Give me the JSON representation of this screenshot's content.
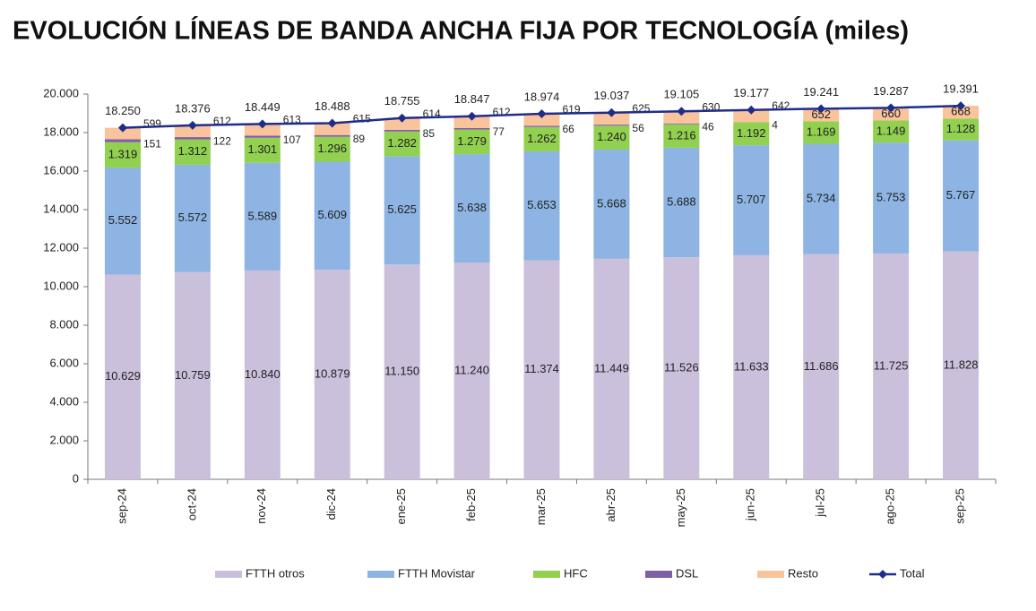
{
  "chart_data": {
    "type": "bar",
    "stacked": true,
    "title": "EVOLUCIÓN LÍNEAS DE BANDA ANCHA FIJA POR TECNOLOGÍA (miles)",
    "categories": [
      "sep-24",
      "oct-24",
      "nov-24",
      "dic-24",
      "ene-25",
      "feb-25",
      "mar-25",
      "abr-25",
      "may-25",
      "jun-25",
      "jul-25",
      "ago-25",
      "sep-25"
    ],
    "series": [
      {
        "name": "FTTH otros",
        "color": "#cbc0dc",
        "values": [
          10629,
          10759,
          10840,
          10879,
          11150,
          11240,
          11374,
          11449,
          11526,
          11633,
          11686,
          11725,
          11828
        ],
        "value_labels": [
          "10.629",
          "10.759",
          "10.840",
          "10.879",
          "11.150",
          "11.240",
          "11.374",
          "11.449",
          "11.526",
          "11.633",
          "11.686",
          "11.725",
          "11.828"
        ]
      },
      {
        "name": "FTTH Movistar",
        "color": "#8db4e2",
        "values": [
          5552,
          5572,
          5589,
          5609,
          5625,
          5638,
          5653,
          5668,
          5688,
          5707,
          5734,
          5753,
          5767
        ],
        "value_labels": [
          "5.552",
          "5.572",
          "5.589",
          "5.609",
          "5.625",
          "5.638",
          "5.653",
          "5.668",
          "5.688",
          "5.707",
          "5.734",
          "5.753",
          "5.767"
        ]
      },
      {
        "name": "HFC",
        "color": "#92d050",
        "values": [
          1319,
          1312,
          1301,
          1296,
          1282,
          1279,
          1262,
          1240,
          1216,
          1192,
          1169,
          1149,
          1128
        ],
        "value_labels": [
          "1.319",
          "1.312",
          "1.301",
          "1.296",
          "1.282",
          "1.279",
          "1.262",
          "1.240",
          "1.216",
          "1.192",
          "1.169",
          "1.149",
          "1.128"
        ]
      },
      {
        "name": "DSL",
        "color": "#7f5fa6",
        "values": [
          151,
          122,
          107,
          89,
          85,
          77,
          66,
          56,
          46,
          4,
          null,
          null,
          null
        ]
      },
      {
        "name": "Resto",
        "color": "#f9c39b",
        "values": [
          599,
          612,
          613,
          615,
          614,
          612,
          619,
          625,
          630,
          642,
          652,
          660,
          668
        ]
      },
      {
        "name": "Total",
        "color": "#1f2d8a",
        "type": "line",
        "values": [
          18250,
          18376,
          18449,
          18488,
          18755,
          18847,
          18974,
          19037,
          19105,
          19177,
          19241,
          19287,
          19391
        ],
        "value_labels": [
          "18.250",
          "18.376",
          "18.449",
          "18.488",
          "18.755",
          "18.847",
          "18.974",
          "19.037",
          "19.105",
          "19.177",
          "19.241",
          "19.287",
          "19.391"
        ]
      }
    ],
    "ylim": [
      0,
      20000
    ],
    "yticks": [
      0,
      {
        "value": 2000,
        "label": "2.000"
      },
      {
        "value": 4000,
        "label": "4.000"
      },
      {
        "value": 6000,
        "label": "6.000"
      },
      {
        "value": 8000,
        "label": "8.000"
      },
      {
        "value": 10000,
        "label": "10.000"
      },
      {
        "value": 12000,
        "label": "12.000"
      },
      {
        "value": 14000,
        "label": "14.000"
      },
      {
        "value": 16000,
        "label": "16.000"
      },
      {
        "value": 18000,
        "label": "18.000"
      },
      {
        "value": 20000,
        "label": "20.000"
      }
    ],
    "grid": false,
    "legend": "bottom"
  }
}
